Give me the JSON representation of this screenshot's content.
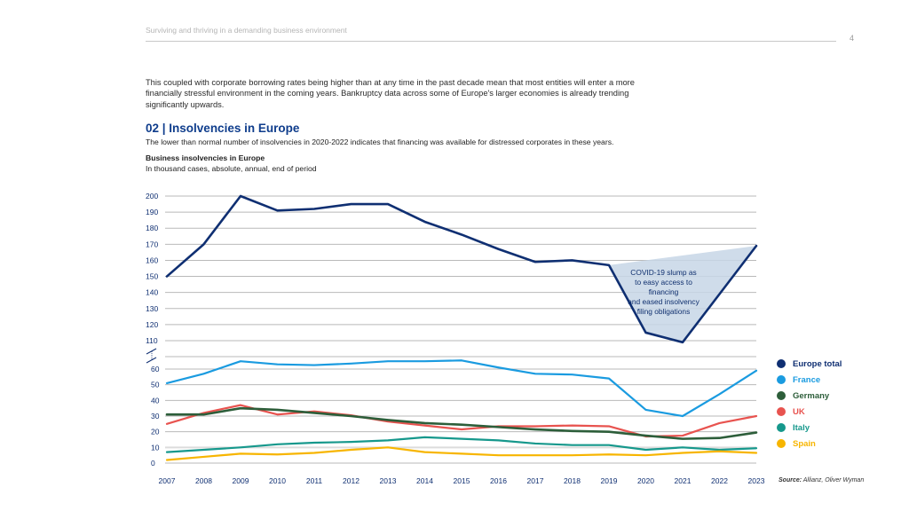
{
  "header": {
    "running_title": "Surviving and thriving in a demanding business environment",
    "page_number": "4"
  },
  "intro_paragraph": "This coupled with corporate borrowing rates being higher than at any time in the past decade mean that most entities will enter a more financially stressful environment in the coming years. Bankruptcy data across some of Europe's larger economies is already trending significantly upwards.",
  "section": {
    "title": "02 | Insolvencies in Europe",
    "subtitle": "The lower than normal number of insolvencies in 2020-2022 indicates that financing was available for distressed corporates in these years."
  },
  "source": {
    "label": "Source:",
    "text": "Allianz, Oliver Wyman"
  },
  "chart_data": {
    "type": "line",
    "title": "Business insolvencies in Europe",
    "subtitle": "In thousand cases, absolute, annual, end of period",
    "xlabel": "",
    "ylabel": "",
    "x": [
      "2007",
      "2008",
      "2009",
      "2010",
      "2011",
      "2012",
      "2013",
      "2014",
      "2015",
      "2016",
      "2017",
      "2018",
      "2019",
      "2020",
      "2021",
      "2022",
      "2023"
    ],
    "y_axis_break": true,
    "upper_ticks": [
      "110",
      "120",
      "130",
      "140",
      "150",
      "160",
      "170",
      "180",
      "190",
      "200"
    ],
    "lower_ticks": [
      "0",
      "10",
      "20",
      "30",
      "40",
      "50",
      "60"
    ],
    "upper_ylim": [
      110,
      200
    ],
    "lower_ylim": [
      0,
      60
    ],
    "grid": true,
    "legend_position": "right",
    "annotation": "COVID-19 slump as to easy access to financing and eased insolvency filing obligations",
    "annotation_lines": [
      "COVID-19 slump as",
      "to easy access to financing",
      "and eased insolvency",
      "filing obligations"
    ],
    "series": [
      {
        "name": "Europe total",
        "color": "#0f2f72",
        "values": [
          150,
          170,
          200,
          191,
          192,
          195,
          195,
          184,
          176,
          167,
          159,
          160,
          157,
          115,
          109,
          139,
          169
        ]
      },
      {
        "name": "France",
        "color": "#1a9be0",
        "values": [
          51,
          57,
          65,
          63,
          62.5,
          63.5,
          65,
          65,
          65.5,
          61,
          57,
          56.5,
          54,
          34,
          30,
          44,
          59
        ]
      },
      {
        "name": "Germany",
        "color": "#2d5e3a",
        "values": [
          31,
          31,
          35,
          34,
          32,
          30,
          27.5,
          25.5,
          24.5,
          23,
          21.5,
          20.5,
          20,
          17.5,
          15.5,
          16,
          19.5
        ]
      },
      {
        "name": "UK",
        "color": "#e8534f",
        "values": [
          25,
          32,
          37,
          31,
          33,
          30.5,
          26.5,
          24,
          21.5,
          23.5,
          23.5,
          24,
          23.5,
          17,
          17.5,
          25.5,
          30
        ]
      },
      {
        "name": "Italy",
        "color": "#16988c",
        "values": [
          7,
          8.5,
          10,
          12,
          13,
          13.5,
          14.5,
          16.5,
          15.5,
          14.5,
          12.5,
          11.5,
          11.5,
          8.5,
          10,
          8.5,
          9.5
        ]
      },
      {
        "name": "Spain",
        "color": "#f7b500",
        "values": [
          2,
          4,
          6,
          5.5,
          6.5,
          8.5,
          10,
          7,
          6,
          5,
          5,
          5,
          5.5,
          5,
          6.5,
          7.5,
          6.5
        ]
      }
    ]
  }
}
